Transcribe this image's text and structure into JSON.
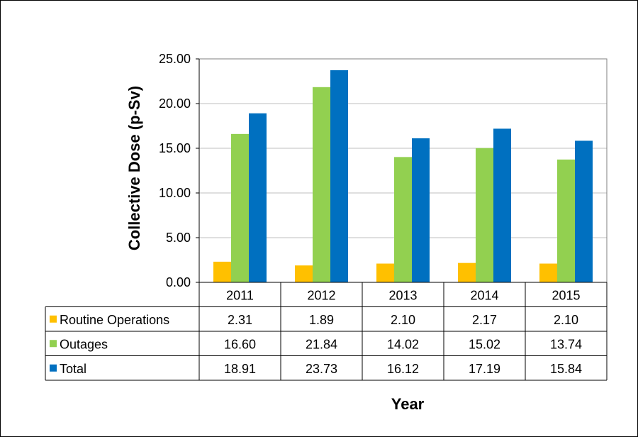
{
  "chart_data": {
    "type": "bar",
    "title": "",
    "xlabel": "Year",
    "ylabel": "Collective Dose (p-Sv)",
    "categories": [
      "2011",
      "2012",
      "2013",
      "2014",
      "2015"
    ],
    "ylim": [
      0,
      25
    ],
    "yticks": [
      "0.00",
      "5.00",
      "10.00",
      "15.00",
      "20.00",
      "25.00"
    ],
    "grid": true,
    "legend": "data table rows",
    "series": [
      {
        "name": "Routine Operations",
        "color": "#FFC000",
        "values": [
          2.31,
          1.89,
          2.1,
          2.17,
          2.1
        ],
        "labels": [
          "2.31",
          "1.89",
          "2.10",
          "2.17",
          "2.10"
        ]
      },
      {
        "name": "Outages",
        "color": "#92D050",
        "values": [
          16.6,
          21.84,
          14.02,
          15.02,
          13.74
        ],
        "labels": [
          "16.60",
          "21.84",
          "14.02",
          "15.02",
          "13.74"
        ]
      },
      {
        "name": "Total",
        "color": "#0070C0",
        "values": [
          18.91,
          23.73,
          16.12,
          17.19,
          15.84
        ],
        "labels": [
          "18.91",
          "23.73",
          "16.12",
          "17.19",
          "15.84"
        ]
      }
    ]
  }
}
